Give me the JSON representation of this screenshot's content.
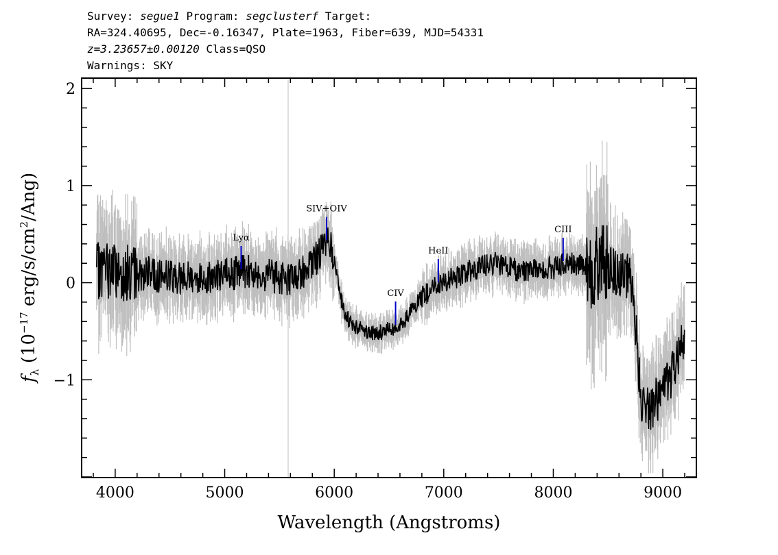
{
  "header": {
    "line1": {
      "k1": "Survey: ",
      "survey": "segue1",
      "k2": " Program: ",
      "program": "segclusterf",
      "k3": " Target:"
    },
    "line2": "RA=324.40695, Dec=-0.16347, Plate=1963, Fiber=639, MJD=54331",
    "line3": {
      "z": "z=3.23657±0.00120",
      "cls": " Class=QSO"
    },
    "line4": "Warnings: SKY"
  },
  "chart_data": {
    "type": "line",
    "xlabel": "Wavelength (Angstroms)",
    "ylabel": "f_λ (10^-17 erg/s/cm^2/Ang)",
    "xlim": [
      3700,
      9300
    ],
    "ylim": [
      -2,
      2.1
    ],
    "xticks": [
      4000,
      5000,
      6000,
      7000,
      8000,
      9000
    ],
    "yticks": [
      -1,
      0,
      1,
      2
    ],
    "colors": {
      "flux": "#000000",
      "error_band": "#bfbfbf",
      "lines": "#0000cc"
    },
    "series": [
      {
        "x": [
          3830,
          3900,
          4000,
          4100,
          4200,
          4300,
          4400,
          4500,
          4600,
          4700,
          4800,
          4900,
          5000,
          5100,
          5200,
          5300,
          5400,
          5500,
          5600,
          5700,
          5800,
          5900,
          5950,
          6000,
          6050,
          6100,
          6200,
          6300,
          6400,
          6500,
          6600,
          6700,
          6800,
          6900,
          7000,
          7100,
          7200,
          7300,
          7400,
          7500,
          7600,
          7700,
          7800,
          7900,
          8000,
          8100,
          8200,
          8300,
          8400,
          8500,
          8600,
          8700,
          8750,
          8800,
          8900,
          9000,
          9100,
          9200
        ],
        "y": [
          0.1,
          0.15,
          0.12,
          0.1,
          0.08,
          0.1,
          0.07,
          0.08,
          0.05,
          0.06,
          0.05,
          0.07,
          0.08,
          0.1,
          0.12,
          0.1,
          0.08,
          0.05,
          0.04,
          0.1,
          0.2,
          0.35,
          0.45,
          0.25,
          -0.1,
          -0.35,
          -0.45,
          -0.5,
          -0.52,
          -0.48,
          -0.45,
          -0.3,
          -0.15,
          -0.05,
          0.0,
          0.05,
          0.1,
          0.15,
          0.18,
          0.2,
          0.15,
          0.12,
          0.12,
          0.15,
          0.15,
          0.2,
          0.2,
          0.15,
          0.2,
          0.15,
          0.1,
          0.05,
          -0.4,
          -1.2,
          -1.3,
          -1.1,
          -0.9,
          -0.5
        ]
      }
    ],
    "annotations": [
      {
        "label": "Lyα",
        "x": 5150
      },
      {
        "label": "SIV+OIV",
        "x": 5930
      },
      {
        "label": "CIV",
        "x": 6560
      },
      {
        "label": "HeII",
        "x": 6950
      },
      {
        "label": "CIII",
        "x": 8090
      }
    ]
  }
}
